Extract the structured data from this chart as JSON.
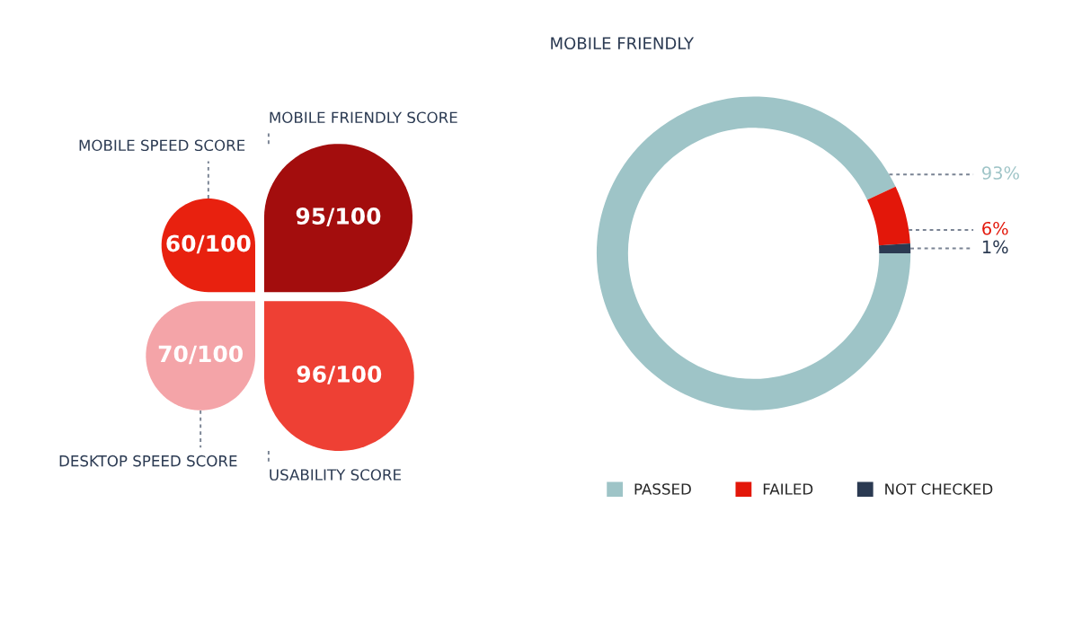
{
  "chart_data": [
    {
      "type": "other",
      "categories": [
        "MOBILE SPEED SCORE",
        "MOBILE FRIENDLY SCORE",
        "DESKTOP SPEED SCORE",
        "USABILITY SCORE"
      ],
      "values": [
        60,
        95,
        70,
        96
      ],
      "value_labels": [
        "60/100",
        "95/100",
        "70/100",
        "96/100"
      ],
      "colors": [
        "#e8210f",
        "#a30d0d",
        "#f4a4a8",
        "#ee4034"
      ]
    },
    {
      "type": "donut",
      "title": "MOBILE FRIENDLY",
      "categories": [
        "PASSED",
        "FAILED",
        "NOT CHECKED"
      ],
      "values": [
        93,
        6,
        1
      ],
      "value_labels": [
        "93%",
        "6%",
        "1%"
      ],
      "colors": [
        "#9ec4c7",
        "#e3170a",
        "#2b3a52"
      ],
      "legend": "bottom"
    }
  ]
}
